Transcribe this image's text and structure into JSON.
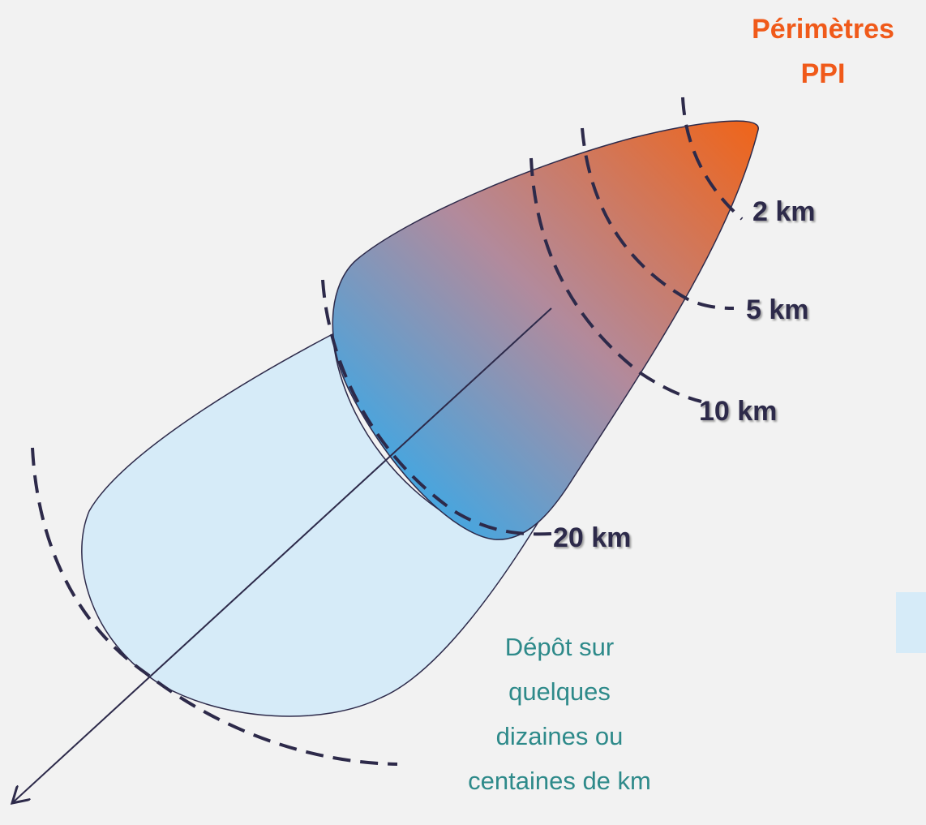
{
  "title": [
    "Périmètres",
    "PPI"
  ],
  "rings": [
    "2 km",
    "5 km",
    "10 km",
    "20 km"
  ],
  "deposit_note": [
    "Dépôt sur",
    "quelques",
    "dizaines ou",
    "centaines de km"
  ]
}
